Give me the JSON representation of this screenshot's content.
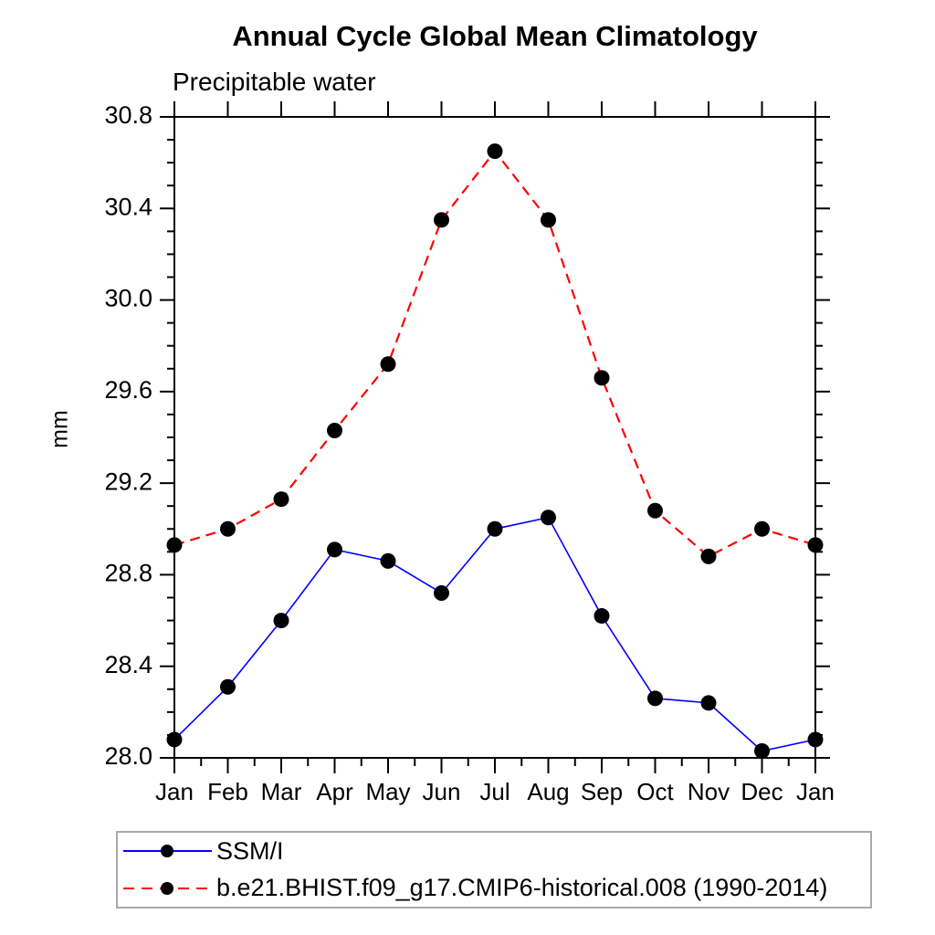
{
  "title": "Annual Cycle Global Mean Climatology",
  "subtitle": "Precipitable water",
  "ylabel": "mm",
  "legend": {
    "items": [
      {
        "label": "SSM/I",
        "color": "#0000ff",
        "style": "solid"
      },
      {
        "label": "b.e21.BHIST.f09_g17.CMIP6-historical.008 (1990-2014)",
        "color": "#ff0000",
        "style": "dashed"
      }
    ]
  },
  "chart_data": {
    "type": "line",
    "title": "Annual Cycle Global Mean Climatology",
    "subtitle": "Precipitable water",
    "xlabel": "",
    "ylabel": "mm",
    "categories": [
      "Jan",
      "Feb",
      "Mar",
      "Apr",
      "May",
      "Jun",
      "Jul",
      "Aug",
      "Sep",
      "Oct",
      "Nov",
      "Dec",
      "Jan"
    ],
    "series": [
      {
        "name": "SSM/I",
        "color": "#0000ff",
        "line_style": "solid",
        "line_width": 1.6,
        "marker": "circle",
        "marker_color": "#000000",
        "values": [
          28.08,
          28.31,
          28.6,
          28.91,
          28.86,
          28.72,
          29.0,
          29.05,
          28.62,
          28.26,
          28.24,
          28.03,
          28.08
        ]
      },
      {
        "name": "b.e21.BHIST.f09_g17.CMIP6-historical.008 (1990-2014)",
        "color": "#ff0000",
        "line_style": "dashed",
        "line_width": 2.2,
        "marker": "circle",
        "marker_color": "#000000",
        "values": [
          28.93,
          29.0,
          29.13,
          29.43,
          29.72,
          30.35,
          30.65,
          30.35,
          29.66,
          29.08,
          28.88,
          29.0,
          28.93
        ]
      }
    ],
    "ylim": [
      28.0,
      30.8
    ],
    "y_major_step": 0.4,
    "y_minor_step": 0.1,
    "y_tick_labels": [
      "28.0",
      "28.4",
      "28.8",
      "29.2",
      "29.6",
      "30.0",
      "30.4",
      "30.8"
    ],
    "grid": false,
    "legend_position": "bottom-left-box",
    "frame_color": "#000000",
    "background_color": "#ffffff"
  }
}
